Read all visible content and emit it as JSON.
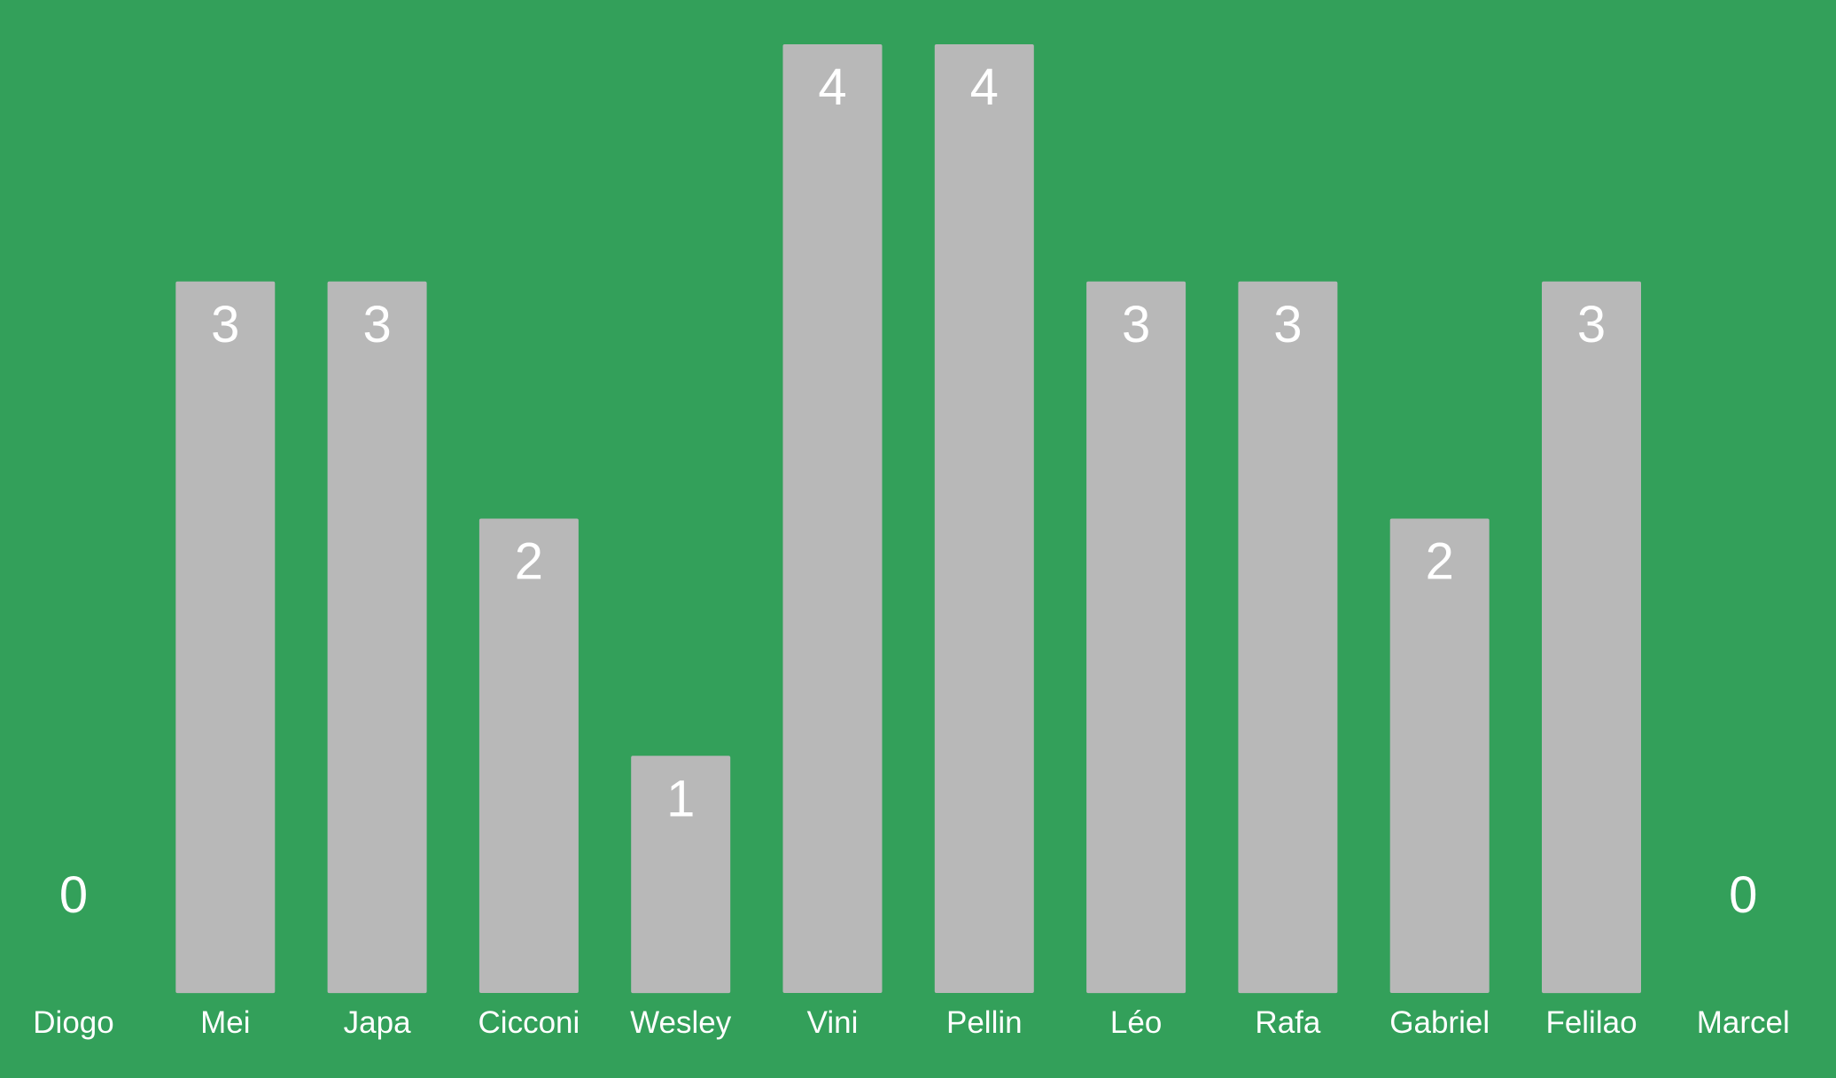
{
  "chart_data": {
    "type": "bar",
    "categories": [
      "Diogo",
      "Mei",
      "Japa",
      "Cicconi",
      "Wesley",
      "Vini",
      "Pellin",
      "Léo",
      "Rafa",
      "Gabriel",
      "Felilao",
      "Marcel"
    ],
    "values": [
      0,
      3,
      3,
      2,
      1,
      4,
      4,
      3,
      3,
      2,
      3,
      0
    ],
    "title": "",
    "xlabel": "",
    "ylabel": "",
    "ylim": [
      0,
      4
    ],
    "grid": false,
    "legend": "none",
    "data_labels": "inside-top",
    "colors": {
      "background": "#33a05a",
      "bar": "#b8b8b8",
      "text": "#ffffff"
    }
  }
}
